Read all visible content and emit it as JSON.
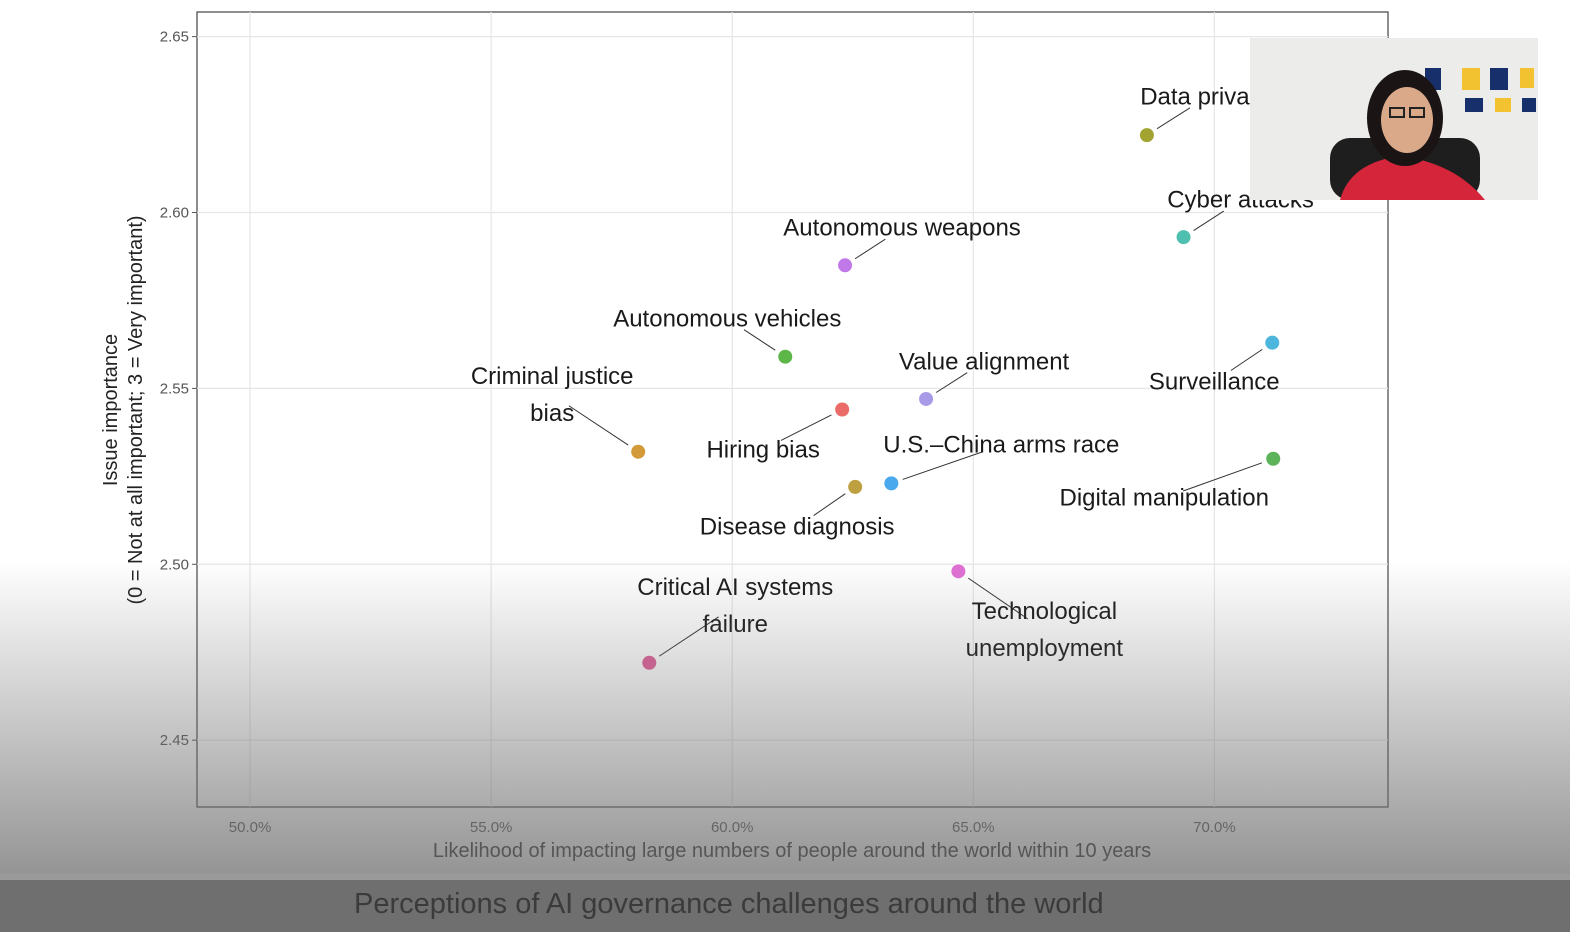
{
  "caption": "Perceptions of AI governance challenges around the world",
  "chart_data": {
    "type": "scatter",
    "xlabel": "Likelihood of impacting large numbers of people around the world within 10 years",
    "ylabel": [
      "Issue importance",
      "(0 = Not at all important; 3 = Very important)"
    ],
    "xlim": [
      48.9,
      73.6
    ],
    "ylim": [
      2.431,
      2.657
    ],
    "xticks": [
      {
        "value": 50,
        "label": "50.0%"
      },
      {
        "value": 55,
        "label": "55.0%"
      },
      {
        "value": 60,
        "label": "60.0%"
      },
      {
        "value": 65,
        "label": "65.0%"
      },
      {
        "value": 70,
        "label": "70.0%"
      }
    ],
    "yticks": [
      2.45,
      {
        "value": 2.5,
        "label": "2.50"
      },
      2.55,
      {
        "value": 2.6,
        "label": "2.60"
      },
      2.65
    ],
    "grid": true,
    "series": [
      {
        "name": "Data privacy",
        "color": "#a3a332",
        "x": [
          68.6
        ],
        "values": [
          2.622
        ]
      },
      {
        "name": "Cyber attacks",
        "color": "#4fc0b0",
        "x": [
          69.36
        ],
        "values": [
          2.593
        ]
      },
      {
        "name": "Autonomous weapons",
        "color": "#c178e8",
        "x": [
          62.34
        ],
        "values": [
          2.585
        ]
      },
      {
        "name": "Autonomous vehicles",
        "color": "#5db648",
        "x": [
          61.1
        ],
        "values": [
          2.559
        ]
      },
      {
        "name": "Value alignment",
        "color": "#a99ae8",
        "x": [
          64.02
        ],
        "values": [
          2.547
        ]
      },
      {
        "name": "Criminal justice bias",
        "color": "#d39a3a",
        "x": [
          58.05
        ],
        "values": [
          2.532
        ]
      },
      {
        "name": "Hiring bias",
        "color": "#ea6c68",
        "x": [
          62.28
        ],
        "values": [
          2.544
        ]
      },
      {
        "name": "U.S.–China arms race",
        "color": "#4aa8ec",
        "x": [
          63.3
        ],
        "values": [
          2.523
        ]
      },
      {
        "name": "Disease diagnosis",
        "color": "#bfa040",
        "x": [
          62.55
        ],
        "values": [
          2.522
        ]
      },
      {
        "name": "Surveillance",
        "color": "#4cb6dc",
        "x": [
          71.2
        ],
        "values": [
          2.563
        ]
      },
      {
        "name": "Digital manipulation",
        "color": "#5cb35a",
        "x": [
          71.22
        ],
        "values": [
          2.53
        ]
      },
      {
        "name": "Technological unemployment",
        "color": "#e070d4",
        "x": [
          64.69
        ],
        "values": [
          2.498
        ]
      },
      {
        "name": "Critical AI systems failure",
        "color": "#e0609a",
        "x": [
          58.28
        ],
        "values": [
          2.472
        ]
      }
    ]
  }
}
